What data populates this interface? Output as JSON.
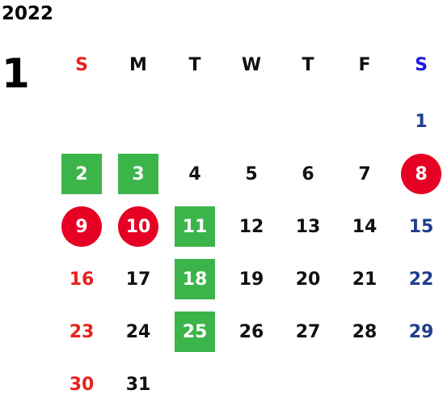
{
  "year": "2022",
  "month": "1",
  "colors": {
    "sunday": "#e8231e",
    "saturday_header": "#1a1ae6",
    "saturday_date": "#1f3e8c",
    "weekday": "#111111",
    "green_square": "#3bb54a",
    "red_circle": "#e60023",
    "highlight_text": "#ffffff"
  },
  "weekdays": [
    {
      "label": "S",
      "type": "sun"
    },
    {
      "label": "M",
      "type": "wk"
    },
    {
      "label": "T",
      "type": "wk"
    },
    {
      "label": "W",
      "type": "wk"
    },
    {
      "label": "T",
      "type": "wk"
    },
    {
      "label": "F",
      "type": "wk"
    },
    {
      "label": "S",
      "type": "sat"
    }
  ],
  "weeks": [
    [
      null,
      null,
      null,
      null,
      null,
      null,
      {
        "d": "1"
      }
    ],
    [
      {
        "d": "2",
        "mark": "square"
      },
      {
        "d": "3",
        "mark": "square"
      },
      {
        "d": "4"
      },
      {
        "d": "5"
      },
      {
        "d": "6"
      },
      {
        "d": "7"
      },
      {
        "d": "8",
        "mark": "circle"
      }
    ],
    [
      {
        "d": "9",
        "mark": "circle"
      },
      {
        "d": "10",
        "mark": "circle"
      },
      {
        "d": "11",
        "mark": "square"
      },
      {
        "d": "12"
      },
      {
        "d": "13"
      },
      {
        "d": "14"
      },
      {
        "d": "15"
      }
    ],
    [
      {
        "d": "16"
      },
      {
        "d": "17"
      },
      {
        "d": "18",
        "mark": "square"
      },
      {
        "d": "19"
      },
      {
        "d": "20"
      },
      {
        "d": "21"
      },
      {
        "d": "22"
      }
    ],
    [
      {
        "d": "23"
      },
      {
        "d": "24"
      },
      {
        "d": "25",
        "mark": "square"
      },
      {
        "d": "26"
      },
      {
        "d": "27"
      },
      {
        "d": "28"
      },
      {
        "d": "29"
      }
    ],
    [
      {
        "d": "30"
      },
      {
        "d": "31"
      },
      null,
      null,
      null,
      null,
      null
    ]
  ]
}
